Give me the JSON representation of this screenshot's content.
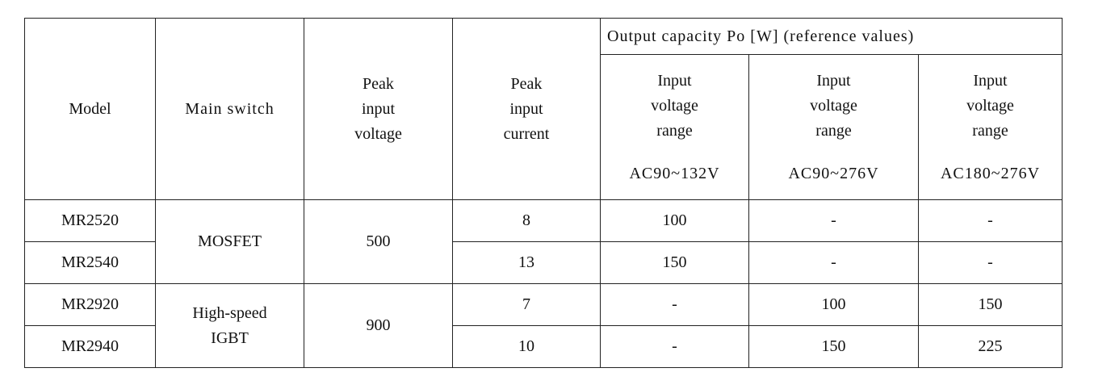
{
  "table": {
    "header": {
      "model": "Model",
      "main_switch": "Main switch",
      "peak_voltage": "Peak input voltage",
      "peak_current": "Peak input current",
      "output_group": "Output capacity Po [W] (reference values)",
      "ranges": [
        {
          "label": "Input voltage range",
          "value": "AC90~132V"
        },
        {
          "label": "Input voltage range",
          "value": "AC90~276V"
        },
        {
          "label": "Input voltage range",
          "value": "AC180~276V"
        }
      ]
    },
    "groups": [
      {
        "main_switch": "MOSFET",
        "peak_voltage": "500",
        "models": [
          {
            "model": "MR2520",
            "peak_current": "8",
            "outputs": [
              "100",
              "-",
              "-"
            ]
          },
          {
            "model": "MR2540",
            "peak_current": "13",
            "outputs": [
              "150",
              "-",
              "-"
            ]
          }
        ]
      },
      {
        "main_switch": "High-speed IGBT",
        "peak_voltage": "900",
        "models": [
          {
            "model": "MR2920",
            "peak_current": "7",
            "outputs": [
              "-",
              "100",
              "150"
            ]
          },
          {
            "model": "MR2940",
            "peak_current": "10",
            "outputs": [
              "-",
              "150",
              "225"
            ]
          }
        ]
      }
    ]
  }
}
